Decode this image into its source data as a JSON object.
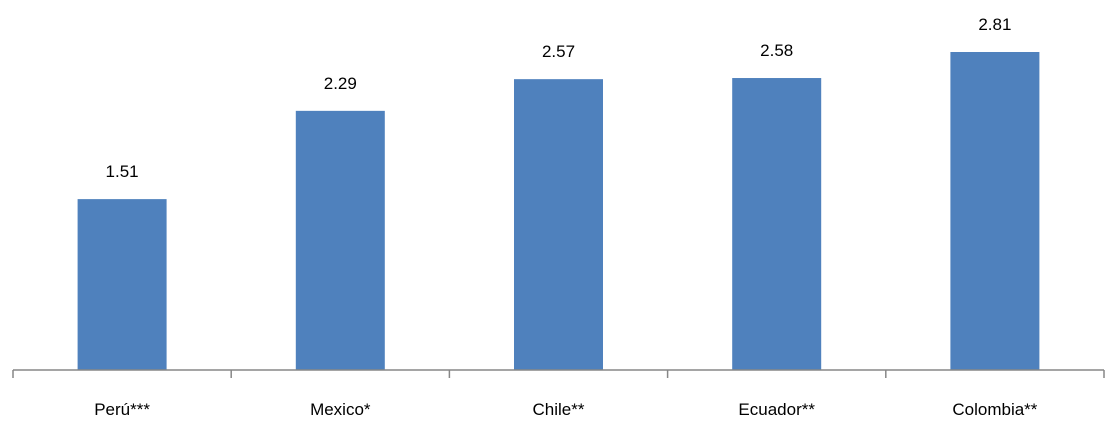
{
  "chart_data": {
    "type": "bar",
    "title": "",
    "xlabel": "",
    "ylabel": "",
    "categories": [
      "Perú***",
      "Mexico*",
      "Chile**",
      "Ecuador**",
      "Colombia**"
    ],
    "values": [
      1.51,
      2.29,
      2.57,
      2.58,
      2.81
    ],
    "value_labels": [
      "1.51",
      "2.29",
      "2.57",
      "2.58",
      "2.81"
    ],
    "ylim": [
      0,
      2.81
    ],
    "grid": false,
    "legend": "none",
    "colors": {
      "bar": "#4F81BD",
      "axis": "#878787",
      "text": "#000000"
    }
  }
}
